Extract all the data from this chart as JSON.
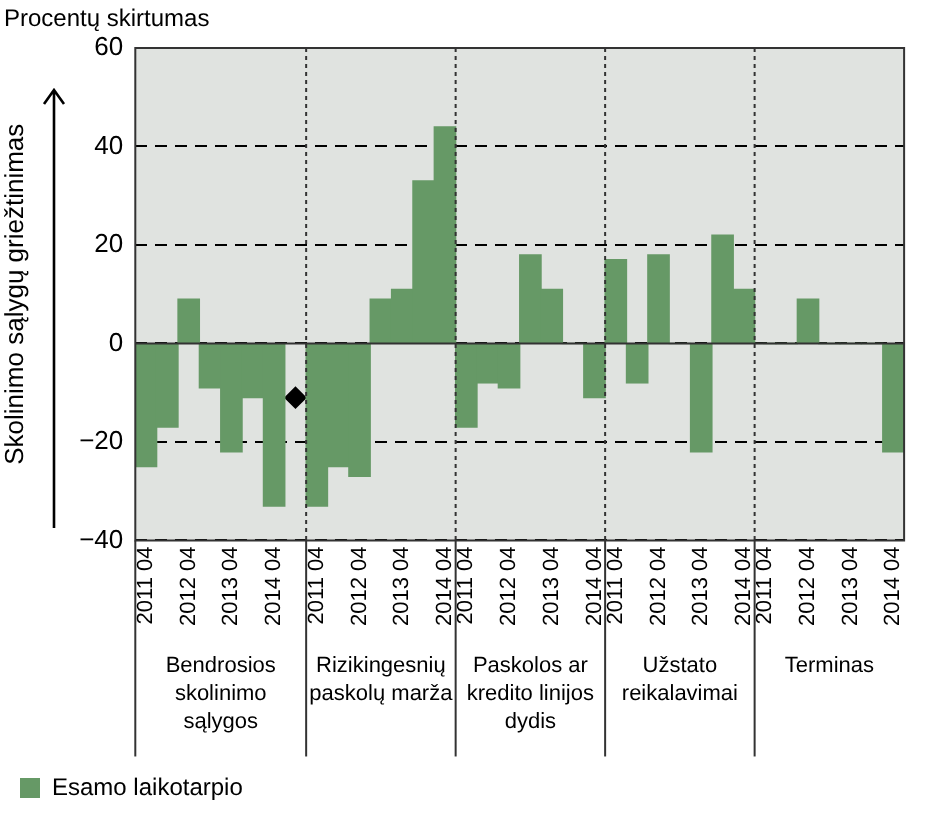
{
  "chart_data": {
    "type": "bar",
    "title": "Procentų skirtumas",
    "ylabel": "Skolinimo sąlygų griežtinimas",
    "categories": [
      "2011 04",
      null,
      "2012 04",
      null,
      "2013 04",
      null,
      "2014 04",
      null,
      "2011 04",
      null,
      "2012 04",
      null,
      "2013 04",
      null,
      "2014 04",
      "2011 04",
      null,
      "2012 04",
      null,
      "2013 04",
      null,
      "2014 04",
      "2011 04",
      null,
      "2012 04",
      null,
      "2013 04",
      null,
      "2014 04",
      "2011 04",
      null,
      "2012 04",
      null,
      "2013 04",
      null,
      "2014 04"
    ],
    "series": [
      {
        "name": "Esamo laikotarpio",
        "color": "#669966",
        "values": [
          -25,
          -17,
          9,
          -9,
          -22,
          -11,
          -33,
          null,
          -33,
          -25,
          -27,
          9,
          11,
          33,
          44,
          -17,
          -8,
          -9,
          18,
          11,
          0,
          -11,
          17,
          -8,
          18,
          0,
          -22,
          22,
          11,
          0,
          0,
          9,
          0,
          0,
          0,
          -22
        ]
      },
      {
        "type": "scatter",
        "color": "#000000",
        "marker": "diamond",
        "values": [
          null,
          null,
          null,
          null,
          null,
          null,
          null,
          -11,
          null,
          null,
          null,
          null,
          null,
          null,
          null,
          null,
          null,
          null,
          null,
          null,
          null,
          null,
          null,
          null,
          null,
          null,
          null,
          null,
          null,
          null,
          null,
          null,
          null,
          null,
          null,
          null
        ]
      }
    ],
    "annotations": [
      "Bendrosios skolinimo sąlygos",
      "Rizikingesnių paskolų marža",
      "Paskolos ar kredito linijos dydis",
      "Užstato reikalavimai",
      "Terminas"
    ],
    "ylim": [
      -40,
      60
    ],
    "yticks": [
      -40,
      -20,
      0,
      20,
      40,
      60
    ],
    "grid": "y",
    "legend": "bottom left"
  }
}
